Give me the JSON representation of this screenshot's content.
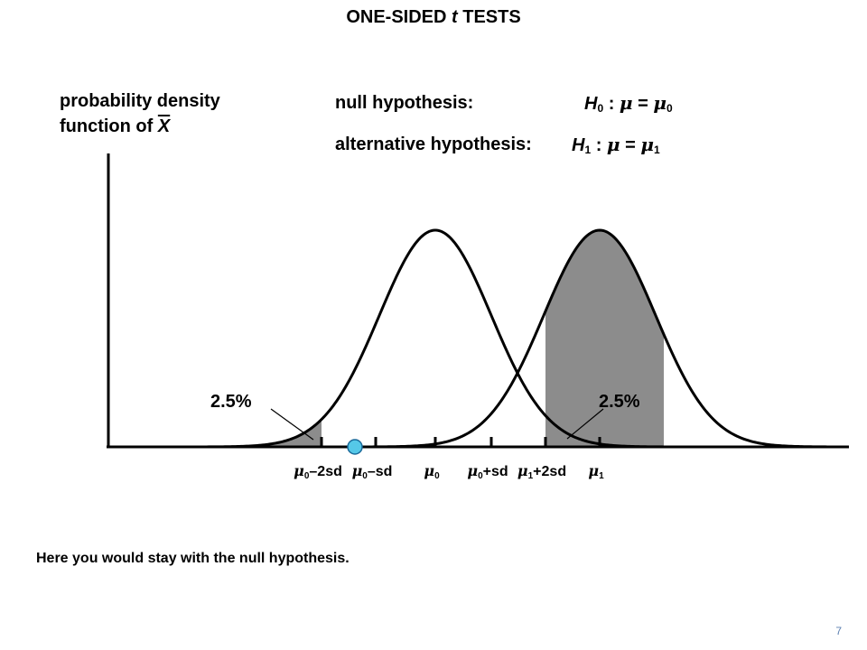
{
  "title": {
    "prefix": "ONE-SIDED ",
    "italic": "t",
    "suffix": " TESTS"
  },
  "y_label": {
    "line1": "probability density",
    "line2_prefix": "function of ",
    "line2_var": "X"
  },
  "null_hypothesis": {
    "label": "null hypothesis:",
    "H": "H",
    "H_sub": "0",
    "colon": " : ",
    "mu": "μ",
    "eq": " = ",
    "mu2": "μ",
    "mu2_sub": "0"
  },
  "alt_hypothesis": {
    "label": "alternative hypothesis:",
    "H": "H",
    "H_sub": "1",
    "colon": " : ",
    "mu": "μ",
    "eq": " = ",
    "mu2": "μ",
    "mu2_sub": "1"
  },
  "tail_left_label": "2.5%",
  "tail_right_label": "2.5%",
  "ticks": [
    {
      "mu": "μ",
      "sub": "0",
      "rest": "–2sd"
    },
    {
      "mu": "μ",
      "sub": "0",
      "rest": "–sd"
    },
    {
      "mu": "μ",
      "sub": "0",
      "rest": ""
    },
    {
      "mu": "μ",
      "sub": "0",
      "rest": "+sd"
    },
    {
      "mu": "μ",
      "sub": "1",
      "rest": "+2sd"
    },
    {
      "mu": "μ",
      "sub": "1",
      "rest": ""
    }
  ],
  "footer_note": "Here you would stay with the null hypothesis.",
  "page_number": "7",
  "colors": {
    "curve": "#000000",
    "shade": "#8c8c8c",
    "marker_fill": "#55c8e8",
    "marker_stroke": "#1a6a9a",
    "page_number": "#5b7fb0"
  }
}
